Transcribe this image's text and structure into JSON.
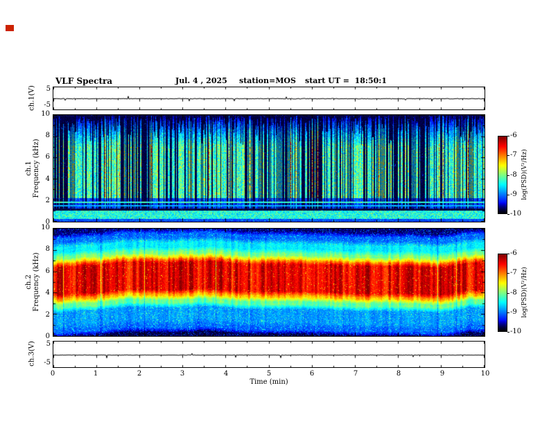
{
  "header": {
    "title": "VLF Spectra",
    "date": "Jul. 4 , 2025",
    "station": "station=MOS",
    "start_ut": "start UT =  18:50:1"
  },
  "colors": {
    "background": "#ffffff",
    "axis": "#000000",
    "trace": "#000000"
  },
  "decorations": {
    "corner_marker_color": "#cc2200"
  },
  "panels": {
    "ch1v": {
      "label": "ch.1(V)",
      "ymax_label": "5",
      "ymin_label": "-5"
    },
    "spec1": {
      "label_channel": "ch.1",
      "label_axis": "Frequency (kHz)",
      "yticks": [
        0,
        2,
        4,
        6,
        8,
        10
      ]
    },
    "spec2": {
      "label_channel": "ch.2",
      "label_axis": "Frequency (kHz)",
      "yticks": [
        0,
        2,
        4,
        6,
        8,
        10
      ]
    },
    "ch3v": {
      "label": "ch.3(V)",
      "ymax_label": "5",
      "ymin_label": "-5"
    }
  },
  "xaxis": {
    "label": "Time (min)",
    "ticks": [
      0,
      1,
      2,
      3,
      4,
      5,
      6,
      7,
      8,
      9,
      10
    ],
    "range_min": [
      0,
      10
    ]
  },
  "colorbars": [
    {
      "label": "log(PSD)(V²/Hz)",
      "ticks": [
        -6,
        -7,
        -8,
        -9,
        -10
      ],
      "range": [
        -10,
        -6
      ]
    },
    {
      "label": "log(PSD)(V²/Hz)",
      "ticks": [
        -6,
        -7,
        -8,
        -9,
        -10
      ],
      "range": [
        -10,
        -6
      ]
    }
  ],
  "chart_data": [
    {
      "id": "ch1_waveform",
      "type": "line",
      "ylabel": "ch.1(V)",
      "xlabel": "Time (min)",
      "x_range": [
        0,
        10
      ],
      "y_range": [
        -5,
        5
      ],
      "baseline_V": 0,
      "noise_amplitude_V": 0.15,
      "summary": "Nearly flat trace at 0 V with small impulsive spikes over the full 10 minutes"
    },
    {
      "id": "ch1_spectrogram",
      "type": "heatmap",
      "xlabel": "Time (min)",
      "ylabel": "Frequency (kHz)",
      "zlabel": "log(PSD)(V²/Hz)",
      "x_range": [
        0,
        10
      ],
      "y_range": [
        0,
        10
      ],
      "z_range": [
        -10,
        -6
      ],
      "background_level": -9.9,
      "features": [
        {
          "kind": "impulsive_vertical_streaks",
          "freq_span_kHz": [
            1.2,
            10
          ],
          "typical_level": -7.6,
          "peak_level": -6.2,
          "duty_cycle": 0.6
        },
        {
          "kind": "continuous_band",
          "freq_span_kHz": [
            0,
            1.0
          ],
          "level": -8.4
        },
        {
          "kind": "narrowband_line",
          "freq_kHz": 1.8,
          "level": -8.3
        },
        {
          "kind": "narrowband_line",
          "freq_kHz": 1.45,
          "level": -8.8
        }
      ]
    },
    {
      "id": "ch2_spectrogram",
      "type": "heatmap",
      "xlabel": "Time (min)",
      "ylabel": "Frequency (kHz)",
      "zlabel": "log(PSD)(V²/Hz)",
      "x_range": [
        0,
        10
      ],
      "y_range": [
        0,
        10
      ],
      "z_range": [
        -10,
        -6
      ],
      "bands": [
        {
          "freq_span_kHz": [
            0,
            0.35
          ],
          "level": -9.8
        },
        {
          "freq_span_kHz": [
            0.35,
            1.1
          ],
          "level": -9.1
        },
        {
          "freq_span_kHz": [
            1.1,
            2.7
          ],
          "level": -8.9
        },
        {
          "freq_span_kHz": [
            2.7,
            3.4
          ],
          "level": -8.1
        },
        {
          "freq_span_kHz": [
            3.4,
            3.9
          ],
          "level": -7.2
        },
        {
          "freq_span_kHz": [
            3.9,
            6.9
          ],
          "level": -6.4
        },
        {
          "freq_span_kHz": [
            6.9,
            7.3
          ],
          "level": -7.2
        },
        {
          "freq_span_kHz": [
            7.3,
            7.9
          ],
          "level": -8.0
        },
        {
          "freq_span_kHz": [
            7.9,
            8.8
          ],
          "level": -8.55
        },
        {
          "freq_span_kHz": [
            8.8,
            9.6
          ],
          "level": -9.1
        },
        {
          "freq_span_kHz": [
            9.6,
            10
          ],
          "level": -9.7
        }
      ],
      "summary": "Intense broadband red band between about 4 and 7 kHz for the whole record, green/cyan transition bands above and below, speckled blue below 2.7 kHz, dark navy at top and bottom edges"
    },
    {
      "id": "ch3_waveform",
      "type": "line",
      "ylabel": "ch.3(V)",
      "xlabel": "Time (min)",
      "x_range": [
        0,
        10
      ],
      "y_range": [
        -5,
        5
      ],
      "baseline_V": 0,
      "noise_amplitude_V": 0.1,
      "summary": "Flat quiet trace at 0 V for the full 10 minutes"
    }
  ]
}
